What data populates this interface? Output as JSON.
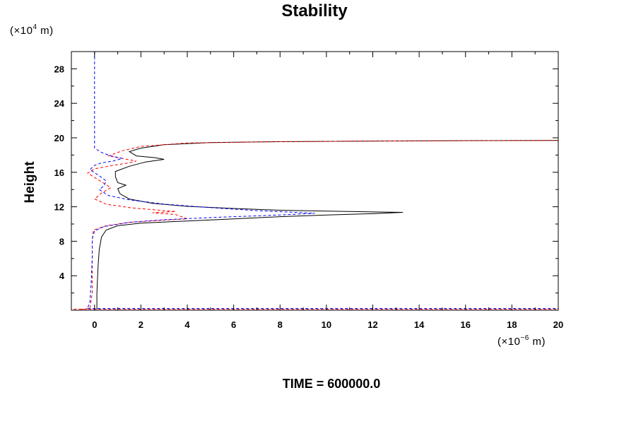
{
  "chart_data": {
    "type": "line",
    "title": "Stability",
    "xlabel": "",
    "ylabel": "Height",
    "x_unit": {
      "prefix": "(×10",
      "exp": "−6",
      "suffix": " m)"
    },
    "y_unit": {
      "prefix": "(×10",
      "exp": "4",
      "suffix": " m)"
    },
    "footer": "TIME = 600000.0",
    "xlim": [
      -1,
      20
    ],
    "ylim": [
      0,
      30
    ],
    "x_ticks": [
      0,
      2,
      4,
      6,
      8,
      10,
      12,
      14,
      16,
      18,
      20
    ],
    "y_ticks": [
      4,
      8,
      12,
      16,
      20,
      24,
      28
    ],
    "grid": false,
    "series": [
      {
        "color": "#000000",
        "dash": "solid",
        "points": [
          [
            0.1,
            0.1
          ],
          [
            0.1,
            2
          ],
          [
            0.15,
            5
          ],
          [
            0.2,
            7
          ],
          [
            0.3,
            8.5
          ],
          [
            0.5,
            9.3
          ],
          [
            1,
            9.8
          ],
          [
            2,
            10.1
          ],
          [
            4,
            10.35
          ],
          [
            6,
            10.6
          ],
          [
            8,
            10.85
          ],
          [
            10,
            11.05
          ],
          [
            12,
            11.2
          ],
          [
            13.3,
            11.35
          ],
          [
            12,
            11.4
          ],
          [
            10,
            11.5
          ],
          [
            8,
            11.6
          ],
          [
            6,
            11.8
          ],
          [
            4,
            12.05
          ],
          [
            2.5,
            12.4
          ],
          [
            1.5,
            12.9
          ],
          [
            1.1,
            13.5
          ],
          [
            1,
            14.1
          ],
          [
            1.35,
            14.5
          ],
          [
            1,
            14.8
          ],
          [
            0.9,
            15.5
          ],
          [
            0.9,
            16.1
          ],
          [
            1.5,
            16.7
          ],
          [
            2.2,
            17.2
          ],
          [
            3,
            17.5
          ],
          [
            2.6,
            17.7
          ],
          [
            1.8,
            17.9
          ],
          [
            1.5,
            18.4
          ],
          [
            2,
            18.8
          ],
          [
            3,
            19.2
          ],
          [
            5,
            19.45
          ],
          [
            8,
            19.55
          ],
          [
            12,
            19.62
          ],
          [
            16,
            19.67
          ],
          [
            20,
            19.7
          ]
        ]
      },
      {
        "color": "#ff0000",
        "dash": "dashed",
        "points": [
          [
            -0.6,
            0.1
          ],
          [
            -0.2,
            0.2
          ],
          [
            -0.1,
            2
          ],
          [
            -0.1,
            5
          ],
          [
            -0.1,
            8
          ],
          [
            -0.05,
            9.3
          ],
          [
            0.5,
            9.8
          ],
          [
            1.5,
            10.2
          ],
          [
            3,
            10.45
          ],
          [
            4,
            10.6
          ],
          [
            3.5,
            11.1
          ],
          [
            2.5,
            11.3
          ],
          [
            3.5,
            11.45
          ],
          [
            3,
            11.55
          ],
          [
            1.5,
            11.9
          ],
          [
            0.5,
            12.3
          ],
          [
            0,
            12.9
          ],
          [
            0.3,
            13.6
          ],
          [
            0.7,
            14.2
          ],
          [
            0.3,
            14.9
          ],
          [
            0,
            15.4
          ],
          [
            -0.3,
            15.9
          ],
          [
            0,
            16.4
          ],
          [
            0.8,
            16.8
          ],
          [
            1.5,
            17.1
          ],
          [
            1.8,
            17.3
          ],
          [
            1.2,
            17.6
          ],
          [
            0.6,
            17.9
          ],
          [
            1.2,
            18.5
          ],
          [
            2,
            19
          ],
          [
            4,
            19.4
          ],
          [
            8,
            19.55
          ],
          [
            12,
            19.62
          ],
          [
            20,
            19.7
          ]
        ]
      },
      {
        "color": "#0000ff",
        "dash": "dashed",
        "points": [
          [
            0,
            30
          ],
          [
            0,
            26
          ],
          [
            0,
            23
          ],
          [
            0,
            21
          ],
          [
            0,
            19.5
          ],
          [
            0,
            18.8
          ],
          [
            0.3,
            18.3
          ],
          [
            0.7,
            17.9
          ],
          [
            1.2,
            17.6
          ],
          [
            0.8,
            17.3
          ],
          [
            0.3,
            17.1
          ],
          [
            0,
            16.8
          ],
          [
            -0.2,
            16.3
          ],
          [
            0.2,
            15.6
          ],
          [
            0.5,
            15
          ],
          [
            0.4,
            14.4
          ],
          [
            0.2,
            14
          ],
          [
            0.6,
            13.3
          ],
          [
            1.5,
            12.8
          ],
          [
            3,
            12.3
          ],
          [
            5,
            11.9
          ],
          [
            7,
            11.55
          ],
          [
            9.5,
            11.25
          ],
          [
            8,
            11.05
          ],
          [
            5.5,
            10.8
          ],
          [
            3,
            10.5
          ],
          [
            1.5,
            10.2
          ],
          [
            0.4,
            9.7
          ],
          [
            0,
            9.2
          ],
          [
            -0.1,
            8.3
          ],
          [
            -0.1,
            6
          ],
          [
            -0.15,
            3
          ],
          [
            -0.2,
            1
          ],
          [
            -0.3,
            0.2
          ]
        ]
      },
      {
        "color": "#ff0000",
        "dash": "dashed",
        "points": [
          [
            -0.9,
            0.12
          ],
          [
            20,
            0.12
          ]
        ]
      },
      {
        "color": "#0000ff",
        "dash": "dashed",
        "points": [
          [
            -0.3,
            0.2
          ],
          [
            20,
            0.2
          ]
        ]
      }
    ]
  }
}
